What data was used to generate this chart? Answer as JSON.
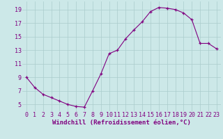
{
  "x": [
    0,
    1,
    2,
    3,
    4,
    5,
    6,
    7,
    8,
    9,
    10,
    11,
    12,
    13,
    14,
    15,
    16,
    17,
    18,
    19,
    20,
    21,
    22,
    23
  ],
  "y": [
    9.0,
    7.5,
    6.5,
    6.0,
    5.5,
    5.0,
    4.7,
    4.6,
    7.0,
    9.5,
    12.5,
    13.0,
    14.7,
    16.0,
    17.2,
    18.7,
    19.3,
    19.2,
    19.0,
    18.5,
    17.5,
    14.0,
    14.0,
    13.2
  ],
  "line_color": "#800080",
  "marker": "+",
  "marker_size": 3,
  "line_width": 0.8,
  "bg_color": "#cce8e8",
  "grid_color": "#aacccc",
  "xlabel": "Windchill (Refroidissement éolien,°C)",
  "xlabel_color": "#800080",
  "xlabel_fontsize": 6.5,
  "yticks": [
    5,
    7,
    9,
    11,
    13,
    15,
    17,
    19
  ],
  "xticks": [
    0,
    1,
    2,
    3,
    4,
    5,
    6,
    7,
    8,
    9,
    10,
    11,
    12,
    13,
    14,
    15,
    16,
    17,
    18,
    19,
    20,
    21,
    22,
    23
  ],
  "tick_label_color": "#800080",
  "tick_label_fontsize": 6,
  "ylim": [
    4.0,
    20.2
  ],
  "xlim": [
    -0.5,
    23.5
  ]
}
